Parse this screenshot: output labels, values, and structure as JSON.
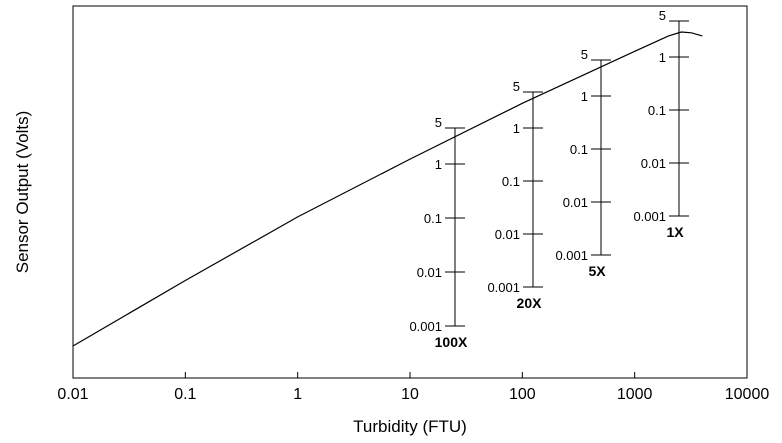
{
  "chart_data": {
    "type": "line",
    "title": "",
    "xlabel": "Turbidity (FTU)",
    "ylabel": "Sensor Output (Volts)",
    "x_scale": "log",
    "xlim": [
      0.01,
      10000
    ],
    "x_ticks": [
      "0.01",
      "0.1",
      "1",
      "10",
      "100",
      "1000",
      "10000"
    ],
    "grid": false,
    "legend": "none",
    "series": [
      {
        "x": [
          0.01,
          0.1,
          1,
          10,
          100,
          1000,
          2000,
          2600,
          3200,
          4000
        ],
        "y_log_fraction": [
          0.18,
          0.35,
          0.515,
          0.665,
          0.81,
          0.945,
          0.985,
          0.995,
          0.993,
          0.985
        ]
      }
    ],
    "gain_scales": [
      {
        "label": "100X",
        "x": 25,
        "ticks": [
          "5",
          "1",
          "0.1",
          "0.01",
          "0.001"
        ]
      },
      {
        "label": "20X",
        "x": 125,
        "ticks": [
          "5",
          "1",
          "0.1",
          "0.01",
          "0.001"
        ]
      },
      {
        "label": "5X",
        "x": 500,
        "ticks": [
          "5",
          "1",
          "0.1",
          "0.01",
          "0.001"
        ]
      },
      {
        "label": "1X",
        "x": 2500,
        "ticks": [
          "5",
          "1",
          "0.1",
          "0.01",
          "0.001"
        ]
      }
    ]
  }
}
